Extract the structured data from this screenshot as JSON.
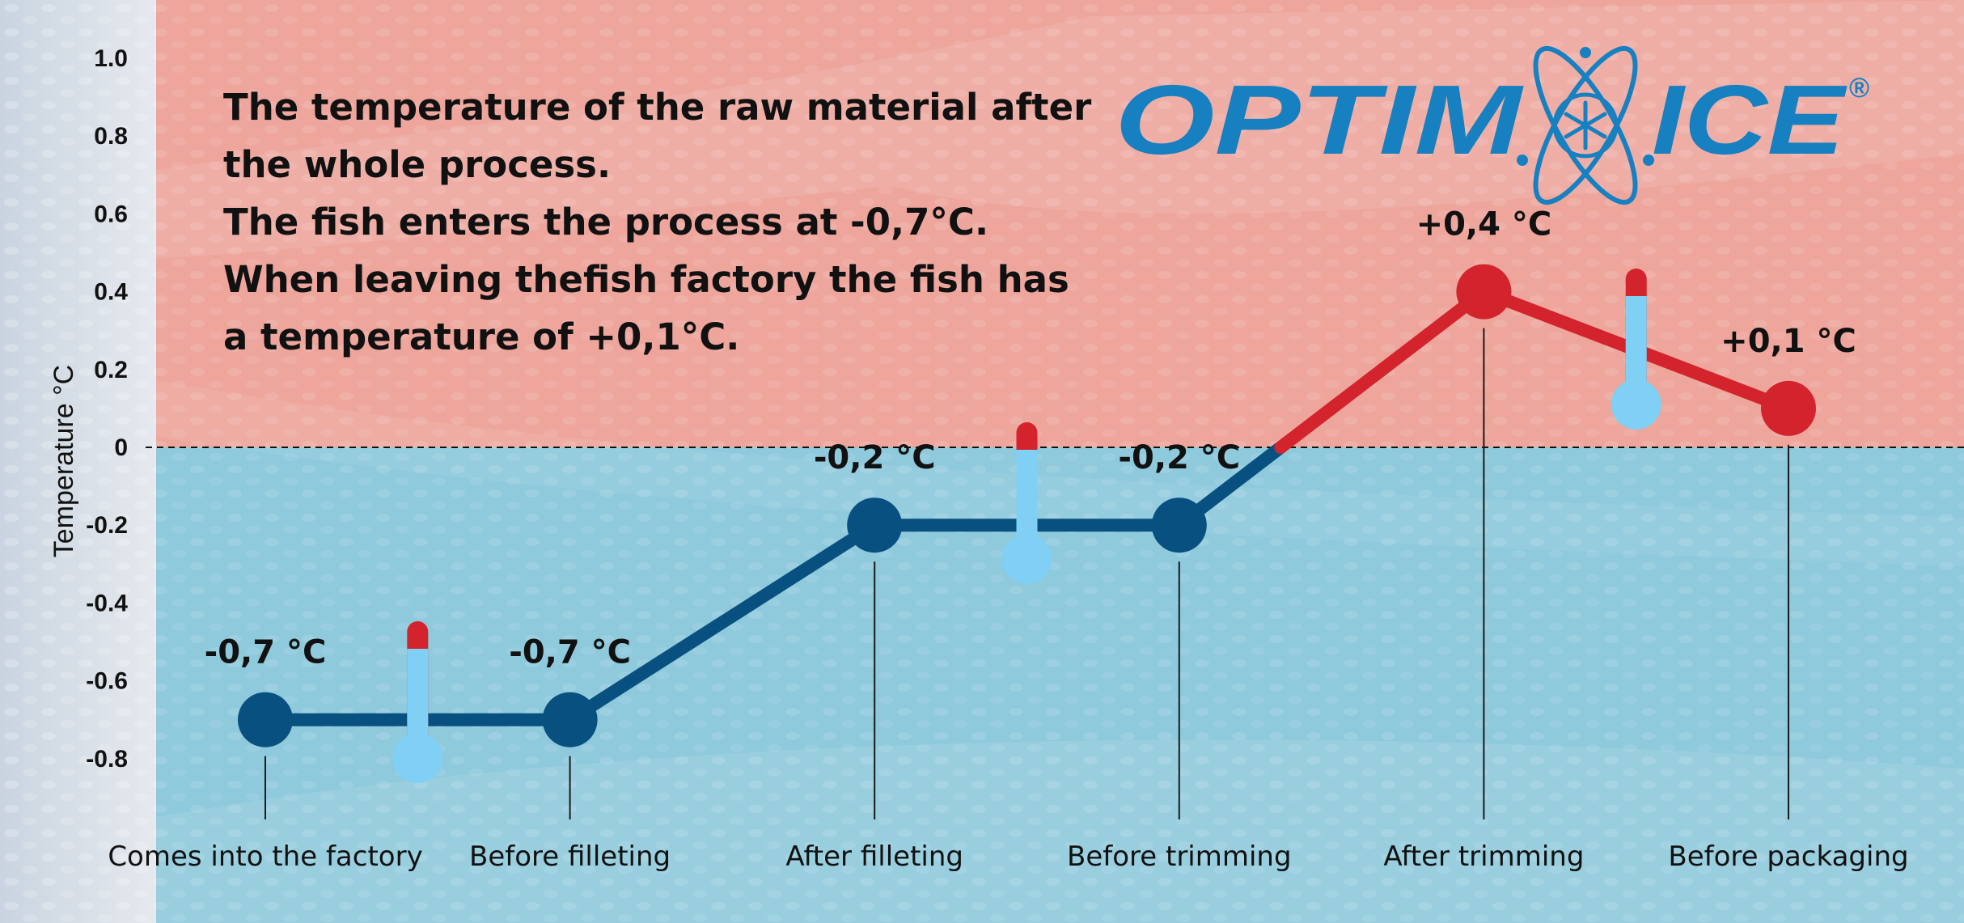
{
  "header": {
    "description": [
      "The temperature of the raw material after",
      "the whole process.",
      "The fish enters the process at -0,7°C.",
      "When leaving thefish factory the fish has",
      "a temperature of +0,1°C."
    ],
    "logo": {
      "left": "OPTIM",
      "right": "ICE",
      "mark": "®"
    }
  },
  "chart_data": {
    "type": "line",
    "ylabel": "Temperature °C",
    "ylim": [
      -0.9,
      1.0
    ],
    "yticks": [
      1.0,
      0.8,
      0.6,
      0.4,
      0.2,
      0,
      -0.2,
      -0.4,
      -0.6,
      -0.8
    ],
    "ytick_labels": [
      "1.0",
      "0.8",
      "0.6",
      "0.4",
      "0.2",
      "0",
      "-0.2",
      "-0.4",
      "-0.6",
      "-0.8"
    ],
    "categories": [
      "Comes into the factory",
      "Before filleting",
      "After filleting",
      "Before trimming",
      "After trimming",
      "Before packaging"
    ],
    "values": [
      -0.7,
      -0.7,
      -0.2,
      -0.2,
      0.4,
      0.1
    ],
    "point_labels": [
      "-0,7 °C",
      "-0,7 °C",
      "-0,2 °C",
      "-0,2 °C",
      "+0,4 °C",
      "+0,1 °C"
    ],
    "zero_line": "dashed",
    "colors": {
      "cold": "#07507f",
      "warm": "#d3232c",
      "cold_zone": "#8ec9dc",
      "warm_zone": "#eda59c",
      "thermometer": "#7fd0f4",
      "logo": "#1680c0"
    }
  }
}
